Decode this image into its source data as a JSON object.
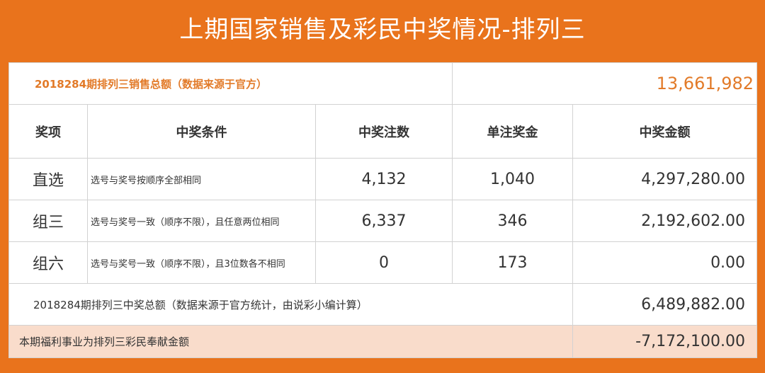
{
  "title": "上期国家销售及彩民中奖情况-排列三",
  "sales": {
    "label": "2018284期排列三销售总额（数据来源于官方）",
    "value": "13,661,982"
  },
  "table": {
    "headers": [
      "奖项",
      "中奖条件",
      "中奖注数",
      "单注奖金",
      "中奖金额"
    ],
    "rows": [
      [
        "直选",
        "选号与奖号按顺序全部相同",
        "4,132",
        "1,040",
        "4,297,280.00"
      ],
      [
        "组三",
        "选号与奖号一致（顺序不限），且任意两位相同",
        "6,337",
        "346",
        "2,192,602.00"
      ],
      [
        "组六",
        "选号与奖号一致（顺序不限），且3位数各不相同",
        "0",
        "173",
        "0.00"
      ]
    ]
  },
  "prize_total": {
    "label": "2018284期排列三中奖总额（数据来源于官方统计，由说彩小编计算）",
    "value": "6,489,882.00"
  },
  "contribution": {
    "label": "本期福利事业为排列三彩民奉献金额",
    "value": "-7,172,100.00"
  }
}
